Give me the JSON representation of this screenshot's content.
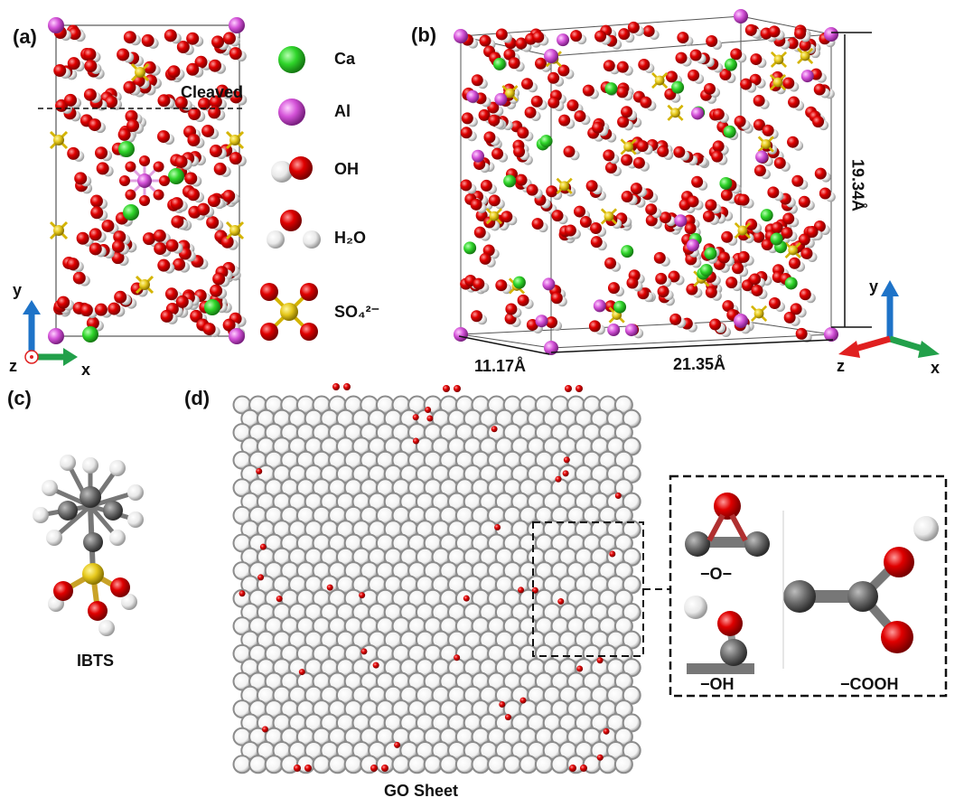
{
  "panels": {
    "a": {
      "label": "(a)",
      "annotation": "Cleaved",
      "legend": [
        {
          "label": "Ca"
        },
        {
          "label": "Al"
        },
        {
          "label": "OH"
        },
        {
          "label": "H₂O"
        },
        {
          "label": "SO₄²⁻"
        }
      ],
      "axes": {
        "y": "y",
        "z": "z",
        "x": "x"
      }
    },
    "b": {
      "label": "(b)",
      "dimensions": {
        "height": "19.34Å",
        "depth": "11.17Å",
        "width": "21.35Å"
      },
      "axes": {
        "y": "y",
        "z": "z",
        "x": "x"
      }
    },
    "c": {
      "label": "(c)",
      "name": "IBTS"
    },
    "d": {
      "label": "(d)",
      "name": "GO Sheet",
      "insets": {
        "epoxy": "−O−",
        "hydroxyl": "−OH",
        "carboxyl": "−COOH"
      }
    }
  }
}
